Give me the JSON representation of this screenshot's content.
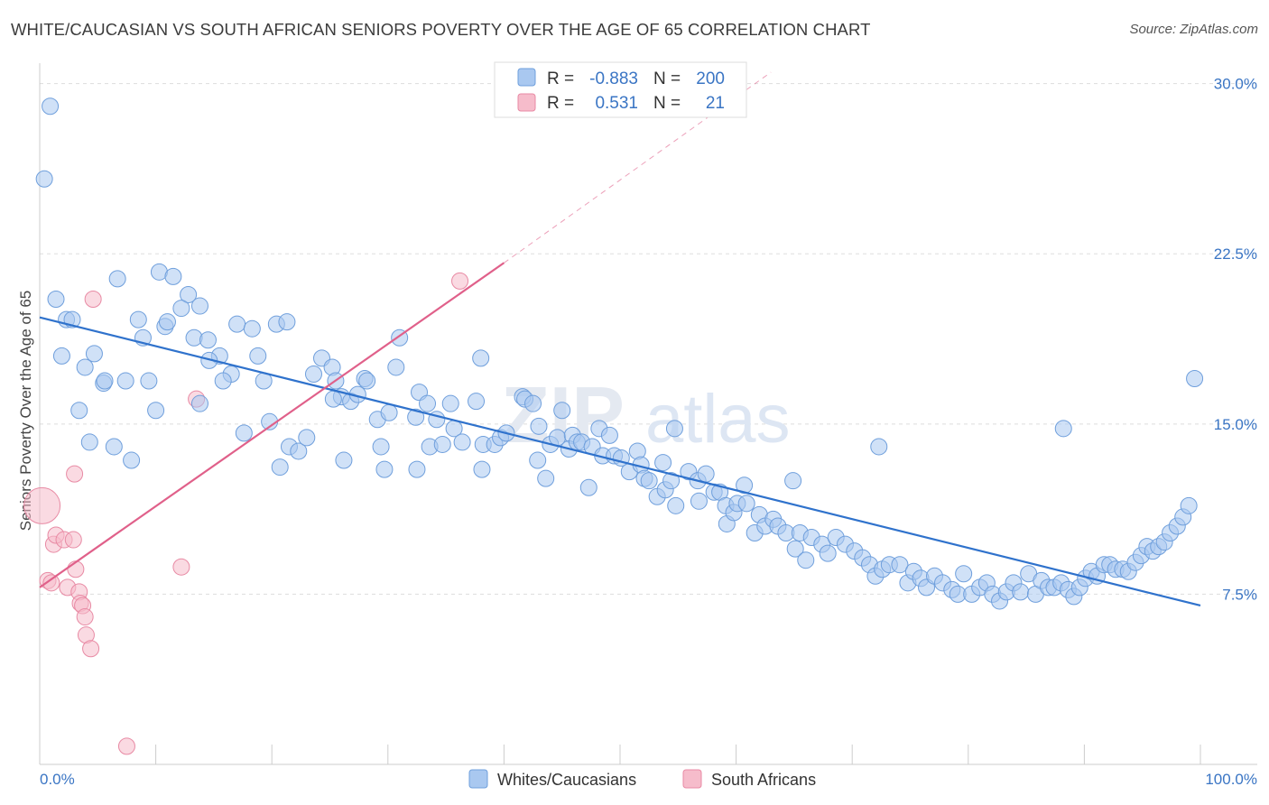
{
  "title": "WHITE/CAUCASIAN VS SOUTH AFRICAN SENIORS POVERTY OVER THE AGE OF 65 CORRELATION CHART",
  "source": "Source: ZipAtlas.com",
  "watermark": {
    "zip": "ZIP",
    "atlas": "atlas"
  },
  "colors": {
    "blue_fill": "#a9c8f0",
    "blue_stroke": "#6f9fdc",
    "blue_line": "#2f72cc",
    "pink_fill": "#f6bccb",
    "pink_stroke": "#e88aa4",
    "pink_line": "#e0608a",
    "tick_text": "#3a75c4",
    "grid": "#dddddd"
  },
  "legend": {
    "rows": [
      {
        "r_label": "R = ",
        "r_value": "-0.883",
        "n_label": "N = ",
        "n_value": "200"
      },
      {
        "r_label": "R = ",
        "r_value": "0.531",
        "n_label": "N = ",
        "n_value": "21"
      }
    ]
  },
  "bottom_legend": {
    "series1": "Whites/Caucasians",
    "series2": "South Africans"
  },
  "chart_data": {
    "type": "scatter",
    "title": "WHITE/CAUCASIAN VS SOUTH AFRICAN SENIORS POVERTY OVER THE AGE OF 65 CORRELATION CHART",
    "xlabel": "",
    "ylabel": "Seniors Poverty Over the Age of 65",
    "xlim": [
      0,
      100
    ],
    "ylim": [
      0,
      30.9
    ],
    "x_tick_labels": [
      "0.0%",
      "100.0%"
    ],
    "y_ticks": [
      {
        "value": 7.5,
        "label": "7.5%"
      },
      {
        "value": 15.0,
        "label": "15.0%"
      },
      {
        "value": 22.5,
        "label": "22.5%"
      },
      {
        "value": 30.0,
        "label": "30.0%"
      }
    ],
    "series": [
      {
        "name": "Whites/Caucasians",
        "r": -0.883,
        "n": 200,
        "trend": {
          "x0": 0,
          "y0": 19.7,
          "x1": 100,
          "y1": 7.0
        },
        "points": [
          [
            0.9,
            29.0
          ],
          [
            0.4,
            25.8
          ],
          [
            1.4,
            20.5
          ],
          [
            2.3,
            19.6
          ],
          [
            2.8,
            19.6
          ],
          [
            1.9,
            18.0
          ],
          [
            4.7,
            18.1
          ],
          [
            3.9,
            17.5
          ],
          [
            5.5,
            16.8
          ],
          [
            7.4,
            16.9
          ],
          [
            5.6,
            16.9
          ],
          [
            9.4,
            16.9
          ],
          [
            3.4,
            15.6
          ],
          [
            4.3,
            14.2
          ],
          [
            6.4,
            14.0
          ],
          [
            7.9,
            13.4
          ],
          [
            6.7,
            21.4
          ],
          [
            10.3,
            21.7
          ],
          [
            11.5,
            21.5
          ],
          [
            12.8,
            20.7
          ],
          [
            12.2,
            20.1
          ],
          [
            13.8,
            20.2
          ],
          [
            8.5,
            19.6
          ],
          [
            10.8,
            19.3
          ],
          [
            11.0,
            19.5
          ],
          [
            8.9,
            18.8
          ],
          [
            13.3,
            18.8
          ],
          [
            14.5,
            18.7
          ],
          [
            15.5,
            18.0
          ],
          [
            14.6,
            17.8
          ],
          [
            16.5,
            17.2
          ],
          [
            15.8,
            16.9
          ],
          [
            19.3,
            16.9
          ],
          [
            20.4,
            19.4
          ],
          [
            17.0,
            19.4
          ],
          [
            18.3,
            19.2
          ],
          [
            18.8,
            18.0
          ],
          [
            21.3,
            19.5
          ],
          [
            13.8,
            15.9
          ],
          [
            10.0,
            15.6
          ],
          [
            19.8,
            15.1
          ],
          [
            17.6,
            14.6
          ],
          [
            21.5,
            14.0
          ],
          [
            22.3,
            13.8
          ],
          [
            23.0,
            14.4
          ],
          [
            20.7,
            13.1
          ],
          [
            24.3,
            17.9
          ],
          [
            25.2,
            17.5
          ],
          [
            23.6,
            17.2
          ],
          [
            25.5,
            16.9
          ],
          [
            26.0,
            16.2
          ],
          [
            25.3,
            16.1
          ],
          [
            26.8,
            16.0
          ],
          [
            27.4,
            16.3
          ],
          [
            28.0,
            17.0
          ],
          [
            28.2,
            16.9
          ],
          [
            26.2,
            13.4
          ],
          [
            29.1,
            15.2
          ],
          [
            29.4,
            14.0
          ],
          [
            30.1,
            15.5
          ],
          [
            29.7,
            13.0
          ],
          [
            31.0,
            18.8
          ],
          [
            30.7,
            17.5
          ],
          [
            32.4,
            15.3
          ],
          [
            32.5,
            13.0
          ],
          [
            34.2,
            15.2
          ],
          [
            32.7,
            16.4
          ],
          [
            33.4,
            15.9
          ],
          [
            35.4,
            15.9
          ],
          [
            33.6,
            14.0
          ],
          [
            35.7,
            14.8
          ],
          [
            34.7,
            14.1
          ],
          [
            36.4,
            14.2
          ],
          [
            37.6,
            16.0
          ],
          [
            38.0,
            17.9
          ],
          [
            38.1,
            13.0
          ],
          [
            38.2,
            14.1
          ],
          [
            39.2,
            14.1
          ],
          [
            39.7,
            14.4
          ],
          [
            40.2,
            14.6
          ],
          [
            41.6,
            16.2
          ],
          [
            41.8,
            16.1
          ],
          [
            42.5,
            15.9
          ],
          [
            43.0,
            14.9
          ],
          [
            42.9,
            13.4
          ],
          [
            43.6,
            12.6
          ],
          [
            44.0,
            14.1
          ],
          [
            44.6,
            14.4
          ],
          [
            45.9,
            14.5
          ],
          [
            45.6,
            13.9
          ],
          [
            46.3,
            14.2
          ],
          [
            45.0,
            15.6
          ],
          [
            46.7,
            14.2
          ],
          [
            47.6,
            14.0
          ],
          [
            47.3,
            12.2
          ],
          [
            48.2,
            14.8
          ],
          [
            48.5,
            13.6
          ],
          [
            49.1,
            14.5
          ],
          [
            49.5,
            13.6
          ],
          [
            50.1,
            13.5
          ],
          [
            50.8,
            12.9
          ],
          [
            51.5,
            13.8
          ],
          [
            51.8,
            13.2
          ],
          [
            52.1,
            12.6
          ],
          [
            52.5,
            12.5
          ],
          [
            53.2,
            11.8
          ],
          [
            53.7,
            13.3
          ],
          [
            53.9,
            12.1
          ],
          [
            54.4,
            12.5
          ],
          [
            54.8,
            11.4
          ],
          [
            55.9,
            12.9
          ],
          [
            56.7,
            12.5
          ],
          [
            56.8,
            11.6
          ],
          [
            57.4,
            12.8
          ],
          [
            58.1,
            12.0
          ],
          [
            58.6,
            12.0
          ],
          [
            59.1,
            11.4
          ],
          [
            59.2,
            10.6
          ],
          [
            59.8,
            11.1
          ],
          [
            60.1,
            11.5
          ],
          [
            60.7,
            12.3
          ],
          [
            60.9,
            11.5
          ],
          [
            61.6,
            10.2
          ],
          [
            62.0,
            11.0
          ],
          [
            62.5,
            10.5
          ],
          [
            63.2,
            10.8
          ],
          [
            63.6,
            10.5
          ],
          [
            64.3,
            10.2
          ],
          [
            65.1,
            9.5
          ],
          [
            65.5,
            10.2
          ],
          [
            66.0,
            9.0
          ],
          [
            66.5,
            10.0
          ],
          [
            67.4,
            9.7
          ],
          [
            67.9,
            9.3
          ],
          [
            68.6,
            10.0
          ],
          [
            69.4,
            9.7
          ],
          [
            70.2,
            9.4
          ],
          [
            70.9,
            9.1
          ],
          [
            71.5,
            8.8
          ],
          [
            72.0,
            8.3
          ],
          [
            72.6,
            8.6
          ],
          [
            73.2,
            8.8
          ],
          [
            74.1,
            8.8
          ],
          [
            74.8,
            8.0
          ],
          [
            75.3,
            8.5
          ],
          [
            75.9,
            8.2
          ],
          [
            76.4,
            7.8
          ],
          [
            77.1,
            8.3
          ],
          [
            77.8,
            8.0
          ],
          [
            78.6,
            7.7
          ],
          [
            79.1,
            7.5
          ],
          [
            79.6,
            8.4
          ],
          [
            80.3,
            7.5
          ],
          [
            81.0,
            7.8
          ],
          [
            81.6,
            8.0
          ],
          [
            82.1,
            7.5
          ],
          [
            82.7,
            7.2
          ],
          [
            83.3,
            7.6
          ],
          [
            83.9,
            8.0
          ],
          [
            84.5,
            7.6
          ],
          [
            85.2,
            8.4
          ],
          [
            85.8,
            7.5
          ],
          [
            86.3,
            8.1
          ],
          [
            86.9,
            7.8
          ],
          [
            87.4,
            7.8
          ],
          [
            88.0,
            8.0
          ],
          [
            88.6,
            7.7
          ],
          [
            89.1,
            7.4
          ],
          [
            89.6,
            7.8
          ],
          [
            90.1,
            8.2
          ],
          [
            90.6,
            8.5
          ],
          [
            91.1,
            8.3
          ],
          [
            91.7,
            8.8
          ],
          [
            92.2,
            8.8
          ],
          [
            92.7,
            8.6
          ],
          [
            93.3,
            8.6
          ],
          [
            93.8,
            8.5
          ],
          [
            94.4,
            8.9
          ],
          [
            94.9,
            9.2
          ],
          [
            95.4,
            9.6
          ],
          [
            95.9,
            9.4
          ],
          [
            96.4,
            9.6
          ],
          [
            96.9,
            9.8
          ],
          [
            97.4,
            10.2
          ],
          [
            98.0,
            10.5
          ],
          [
            98.5,
            10.9
          ],
          [
            99.0,
            11.4
          ],
          [
            99.5,
            17.0
          ],
          [
            88.2,
            14.8
          ],
          [
            72.3,
            14.0
          ],
          [
            64.9,
            12.5
          ],
          [
            54.7,
            14.8
          ]
        ]
      },
      {
        "name": "South Africans",
        "r": 0.531,
        "n": 21,
        "trend": {
          "x0": 0,
          "y0": 7.8,
          "x1": 40,
          "y1": 22.1,
          "x_dash_end": 63,
          "y_dash_end": 30.5
        },
        "points": [
          [
            0.2,
            11.4,
            "large"
          ],
          [
            0.7,
            8.1
          ],
          [
            1.0,
            8.0
          ],
          [
            1.2,
            9.7
          ],
          [
            1.4,
            10.1
          ],
          [
            2.1,
            9.9
          ],
          [
            2.4,
            7.8
          ],
          [
            2.9,
            9.9
          ],
          [
            3.0,
            12.8
          ],
          [
            3.1,
            8.6
          ],
          [
            3.4,
            7.6
          ],
          [
            3.5,
            7.1
          ],
          [
            3.7,
            7.0
          ],
          [
            3.9,
            6.5
          ],
          [
            4.0,
            5.7
          ],
          [
            4.4,
            5.1
          ],
          [
            4.6,
            20.5
          ],
          [
            13.5,
            16.1
          ],
          [
            12.2,
            8.7
          ],
          [
            36.2,
            21.3
          ],
          [
            7.5,
            0.8
          ]
        ]
      }
    ]
  }
}
